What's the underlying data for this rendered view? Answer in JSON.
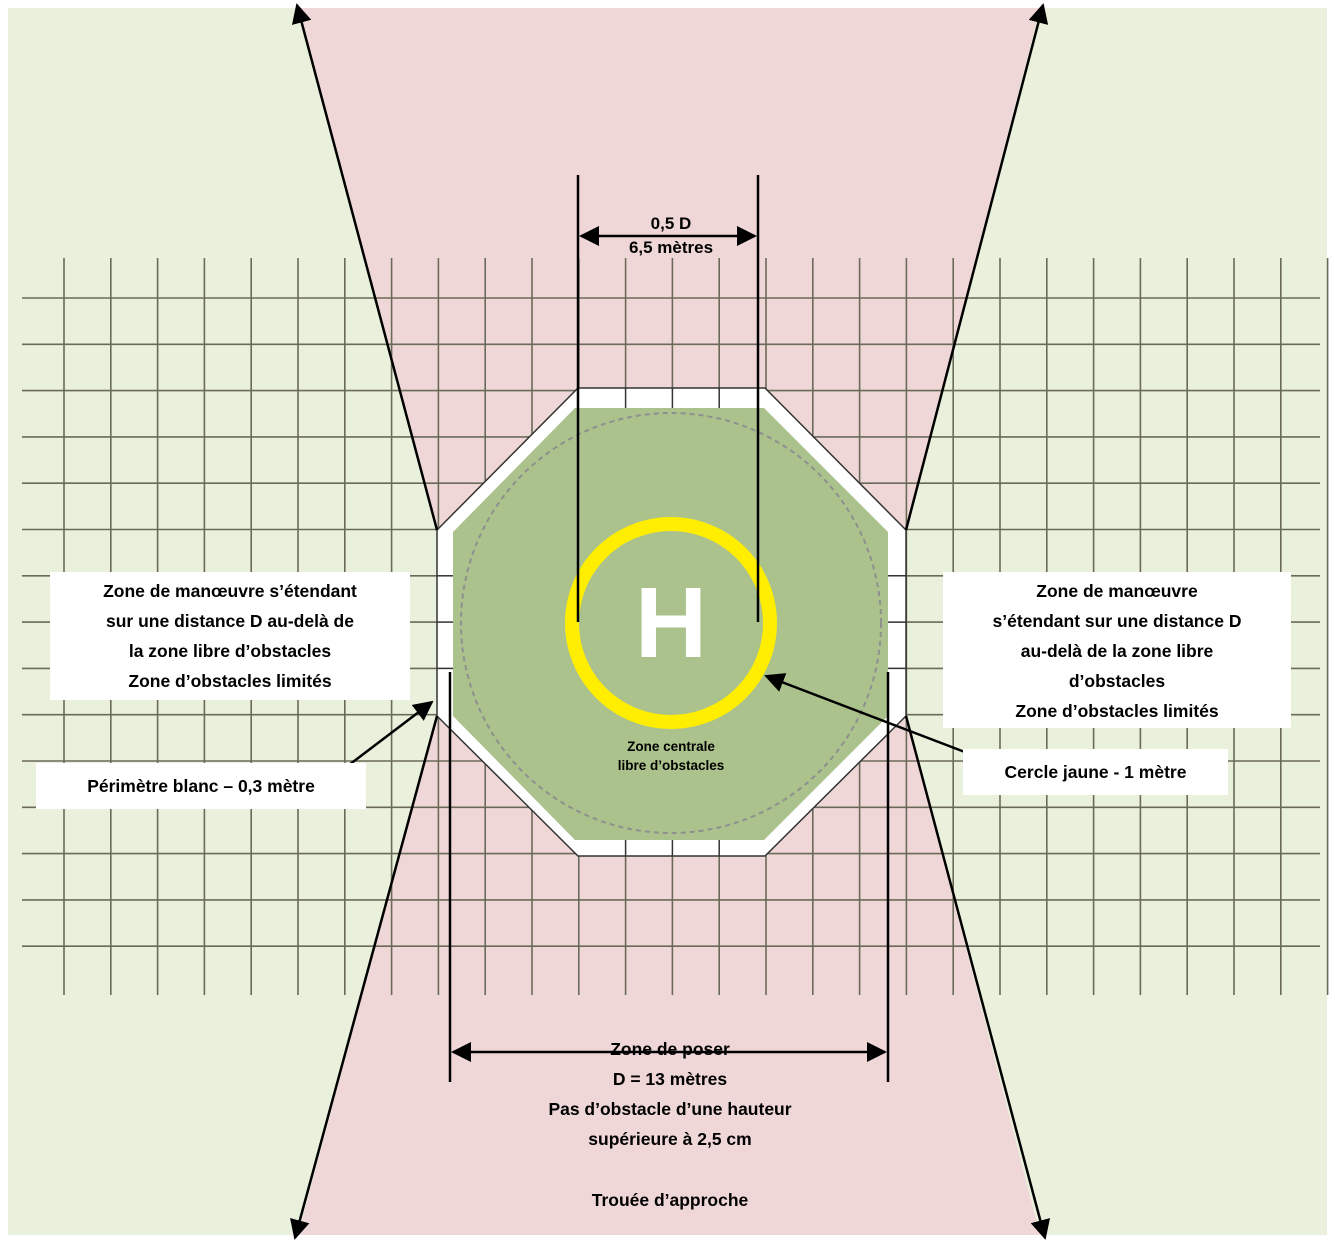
{
  "colors": {
    "side_zone": "#e9f1dc",
    "approach_zone": "#f0d7d7",
    "grid_line": "#6a6a58",
    "octagon_fill": "#8aab60",
    "white_perimeter": "#ffffff",
    "yellow_circle": "#ffee00",
    "dashed_circle": "#8f8f8f",
    "line": "#000000"
  },
  "labels": {
    "top_dimension": [
      "0,5 D",
      "6,5 mètres"
    ],
    "left_zone": [
      "Zone de manœuvre s’étendant",
      "sur une distance D au-delà de",
      "la zone libre d’obstacles",
      "Zone d’obstacles limités"
    ],
    "right_zone": [
      "Zone de manœuvre",
      "s’étendant sur une distance D",
      "au-delà de la zone libre",
      "d’obstacles",
      "Zone d’obstacles limités"
    ],
    "white_perimeter": "Périmètre blanc – 0,3 mètre",
    "yellow_circle": "Cercle jaune - 1 mètre",
    "central_zone": [
      "Zone centrale",
      "libre d’obstacles"
    ],
    "helipad_letter": "H",
    "landing_zone": [
      "Zone de poser",
      "D = 13 mètres",
      "Pas d’obstacle d’une hauteur",
      "supérieure à 2,5 cm"
    ],
    "approach": "Trouée d’approche"
  }
}
